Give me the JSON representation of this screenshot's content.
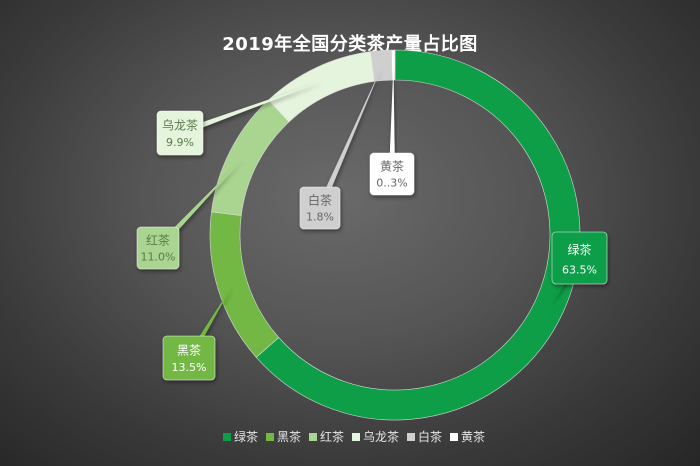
{
  "chart_data": {
    "type": "pie",
    "title": "2019年全国分类茶产量占比图",
    "categories": [
      "绿茶",
      "黑茶",
      "红茶",
      "乌龙茶",
      "白茶",
      "黄茶"
    ],
    "values": [
      63.5,
      13.5,
      11.0,
      9.9,
      1.8,
      0.3
    ],
    "value_labels": [
      "63.5%",
      "13.5%",
      "11.0%",
      "9.9%",
      "1.8%",
      "0..3%"
    ],
    "colors": [
      "#0f9e48",
      "#73b844",
      "#aad590",
      "#e5f4dc",
      "#cfcfcf",
      "#ffffff"
    ],
    "label_text_colors": [
      "#ffffff",
      "#ffffff",
      "#5a7a4a",
      "#5a7a4a",
      "#666666",
      "#666666"
    ],
    "style": "donut",
    "legend_position": "bottom"
  }
}
